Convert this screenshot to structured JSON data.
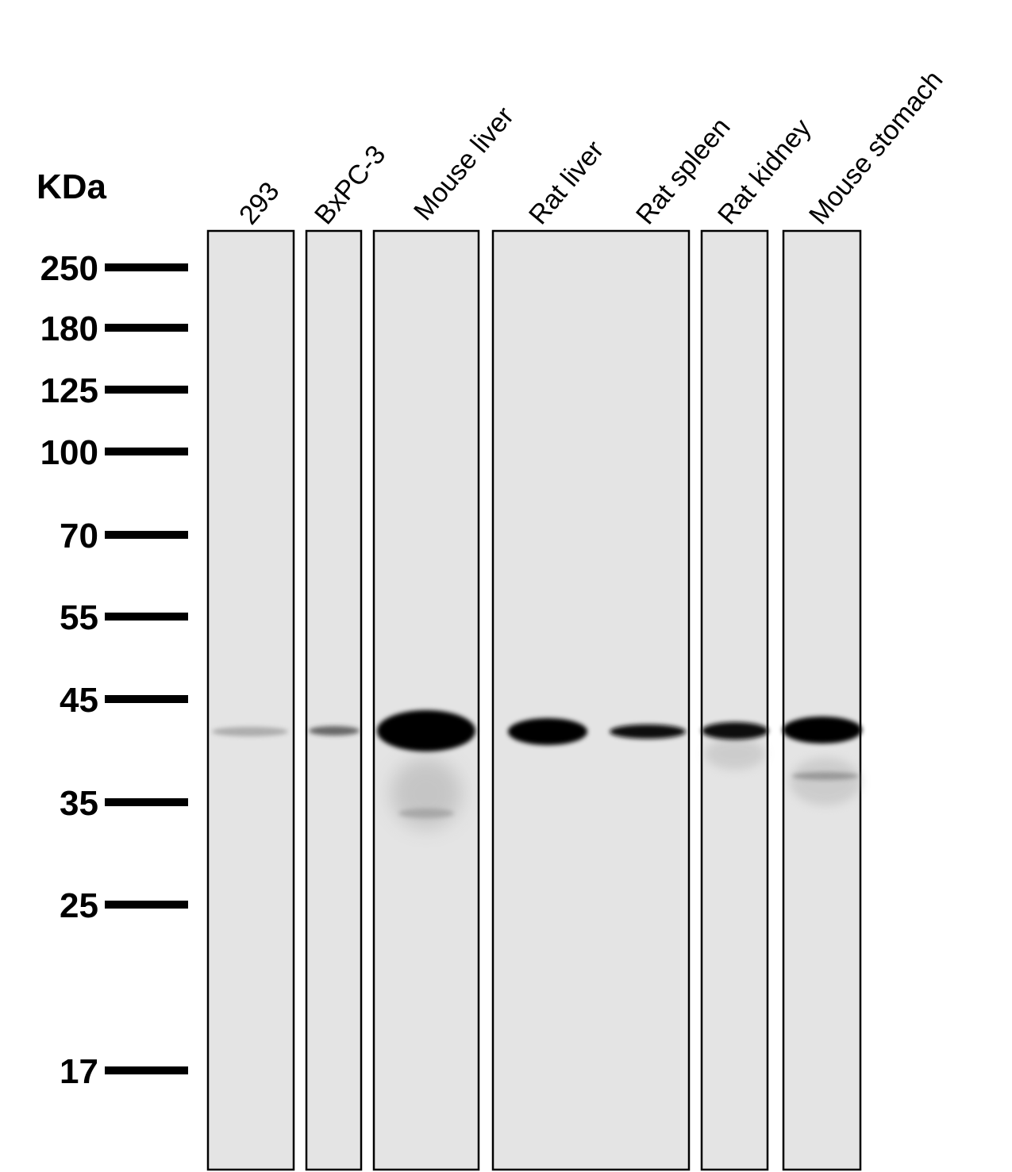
{
  "unit": "KDa",
  "markers": [
    250,
    180,
    125,
    100,
    70,
    55,
    45,
    35,
    25,
    17
  ],
  "lanes": [
    "293",
    "BxPC-3",
    "Mouse liver",
    "Rat liver",
    "Rat spleen",
    "Rat kidney",
    "Mouse stomach"
  ]
}
